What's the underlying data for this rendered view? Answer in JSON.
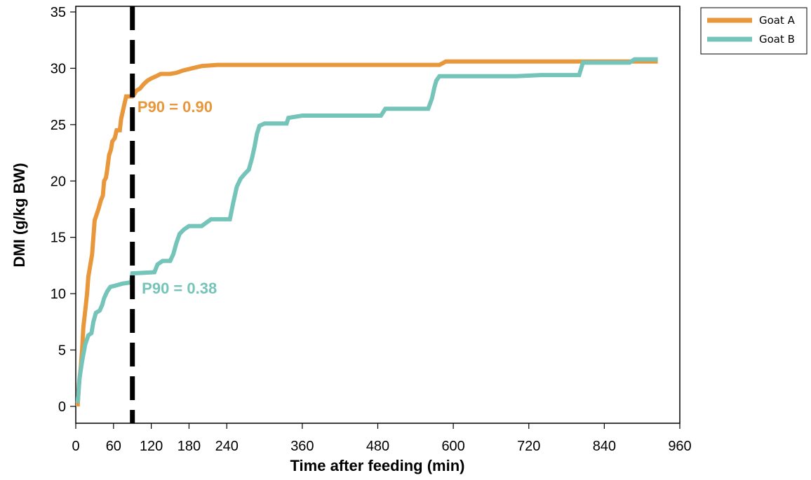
{
  "chart_data": {
    "type": "line",
    "title": "",
    "xlabel": "Time after feeding (min)",
    "ylabel": "DMI (g/kg BW)",
    "xlim": [
      0,
      960
    ],
    "ylim": [
      -1.5,
      35.5
    ],
    "x_ticks": [
      0,
      60,
      120,
      180,
      240,
      360,
      480,
      600,
      720,
      840,
      960
    ],
    "y_ticks": [
      0,
      5,
      10,
      15,
      20,
      25,
      30,
      35
    ],
    "grid": false,
    "legend_position": "outside-top-right",
    "reference_line": {
      "x": 90,
      "style": "dashed",
      "color": "#000000"
    },
    "annotations": [
      {
        "text": "P90 = 0.90",
        "x": 98,
        "y": 26.1,
        "color": "#E8973A"
      },
      {
        "text": "P90 = 0.38",
        "x": 105,
        "y": 10,
        "color": "#75C4B9"
      }
    ],
    "series": [
      {
        "name": "Goat A",
        "color": "#E8973A",
        "points": [
          [
            3,
            0
          ],
          [
            5,
            2
          ],
          [
            8,
            3.5
          ],
          [
            10,
            5
          ],
          [
            12,
            7
          ],
          [
            15,
            8.5
          ],
          [
            18,
            10
          ],
          [
            20,
            11.5
          ],
          [
            23,
            12.5
          ],
          [
            26,
            13.5
          ],
          [
            28,
            15
          ],
          [
            30,
            16.5
          ],
          [
            33,
            17
          ],
          [
            36,
            17.5
          ],
          [
            40,
            18.3
          ],
          [
            43,
            18.7
          ],
          [
            45,
            20
          ],
          [
            48,
            20.3
          ],
          [
            50,
            21
          ],
          [
            53,
            22.3
          ],
          [
            56,
            22.8
          ],
          [
            58,
            23.5
          ],
          [
            62,
            23.8
          ],
          [
            65,
            24.5
          ],
          [
            70,
            24.5
          ],
          [
            72,
            25.5
          ],
          [
            76,
            26.5
          ],
          [
            80,
            27.5
          ],
          [
            90,
            27.5
          ],
          [
            93,
            27.7
          ],
          [
            96,
            28
          ],
          [
            102,
            28.2
          ],
          [
            108,
            28.6
          ],
          [
            114,
            28.9
          ],
          [
            120,
            29.1
          ],
          [
            128,
            29.3
          ],
          [
            135,
            29.5
          ],
          [
            150,
            29.5
          ],
          [
            160,
            29.6
          ],
          [
            170,
            29.8
          ],
          [
            185,
            30
          ],
          [
            200,
            30.2
          ],
          [
            225,
            30.3
          ],
          [
            400,
            30.3
          ],
          [
            578,
            30.3
          ],
          [
            588,
            30.6
          ],
          [
            700,
            30.6
          ],
          [
            860,
            30.6
          ],
          [
            925,
            30.6
          ]
        ]
      },
      {
        "name": "Goat B",
        "color": "#75C4B9",
        "points": [
          [
            3,
            0.3
          ],
          [
            6,
            2.5
          ],
          [
            10,
            4
          ],
          [
            15,
            5.5
          ],
          [
            20,
            6.3
          ],
          [
            25,
            6.5
          ],
          [
            28,
            7.5
          ],
          [
            32,
            8.3
          ],
          [
            38,
            8.5
          ],
          [
            42,
            9
          ],
          [
            45,
            9.6
          ],
          [
            50,
            10.2
          ],
          [
            55,
            10.6
          ],
          [
            62,
            10.7
          ],
          [
            75,
            10.9
          ],
          [
            88,
            11
          ],
          [
            90,
            11.8
          ],
          [
            125,
            11.9
          ],
          [
            130,
            12.6
          ],
          [
            138,
            12.9
          ],
          [
            150,
            12.9
          ],
          [
            155,
            13.5
          ],
          [
            160,
            14.5
          ],
          [
            165,
            15.3
          ],
          [
            172,
            15.7
          ],
          [
            180,
            16
          ],
          [
            200,
            16
          ],
          [
            215,
            16.6
          ],
          [
            245,
            16.6
          ],
          [
            250,
            18
          ],
          [
            256,
            19.5
          ],
          [
            262,
            20.2
          ],
          [
            268,
            20.6
          ],
          [
            275,
            21
          ],
          [
            280,
            22
          ],
          [
            284,
            23
          ],
          [
            288,
            24.2
          ],
          [
            292,
            24.9
          ],
          [
            300,
            25.1
          ],
          [
            335,
            25.1
          ],
          [
            338,
            25.6
          ],
          [
            360,
            25.8
          ],
          [
            400,
            25.8
          ],
          [
            485,
            25.8
          ],
          [
            492,
            26.4
          ],
          [
            560,
            26.4
          ],
          [
            566,
            27.3
          ],
          [
            570,
            28.3
          ],
          [
            573,
            28.9
          ],
          [
            578,
            29.3
          ],
          [
            700,
            29.3
          ],
          [
            740,
            29.4
          ],
          [
            800,
            29.4
          ],
          [
            806,
            30.5
          ],
          [
            880,
            30.5
          ],
          [
            888,
            30.8
          ],
          [
            925,
            30.8
          ]
        ]
      }
    ]
  }
}
